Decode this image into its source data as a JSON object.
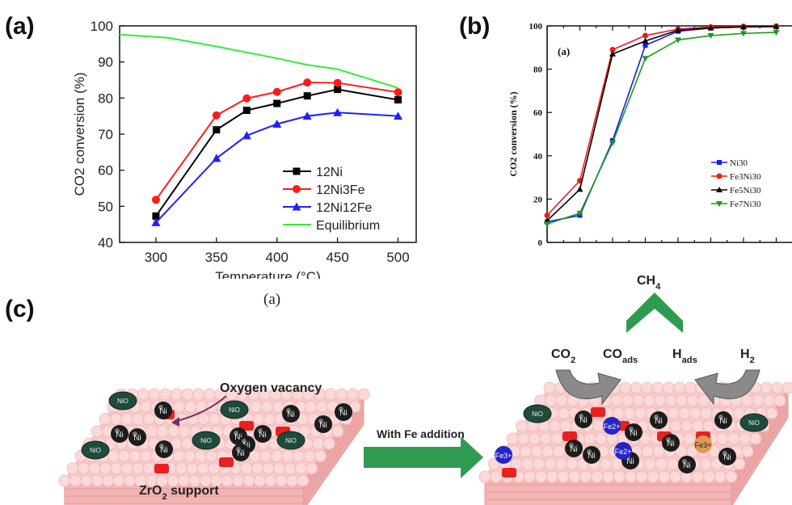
{
  "panels": {
    "a_letter": "(a)",
    "b_letter": "(b)",
    "c_letter": "(c)",
    "a_caption": "(a)"
  },
  "chart_data": [
    {
      "id": "chart-a",
      "type": "line",
      "xlabel": "Temperature (°C)",
      "ylabel": "CO2 conversion (%)",
      "xlim": [
        270,
        515
      ],
      "ylim": [
        40,
        100
      ],
      "xticks": [
        300,
        350,
        400,
        450,
        500
      ],
      "yticks": [
        40,
        50,
        60,
        70,
        80,
        90,
        100
      ],
      "legend_position": "bottom-right",
      "series": [
        {
          "name": "12Ni",
          "color": "#000000",
          "marker": "square",
          "x": [
            300,
            350,
            375,
            400,
            425,
            450,
            500
          ],
          "y": [
            47.3,
            71.2,
            76.6,
            78.5,
            80.6,
            82.4,
            79.5
          ]
        },
        {
          "name": "12Ni3Fe",
          "color": "#ff1a1a",
          "marker": "circle",
          "x": [
            300,
            350,
            375,
            400,
            425,
            450,
            500
          ],
          "y": [
            51.8,
            75.2,
            79.9,
            81.7,
            84.3,
            84.2,
            81.6
          ]
        },
        {
          "name": "12Ni12Fe",
          "color": "#2020ff",
          "marker": "triangle-up",
          "x": [
            300,
            350,
            375,
            400,
            425,
            450,
            500
          ],
          "y": [
            45.5,
            63.3,
            69.6,
            72.8,
            75.0,
            76.0,
            75.0
          ]
        },
        {
          "name": "Equilibrium",
          "color": "#33ee33",
          "marker": "none",
          "x": [
            270,
            310,
            350,
            400,
            425,
            450,
            500
          ],
          "y": [
            97.6,
            96.7,
            94.3,
            91.0,
            89.2,
            88.0,
            82.8
          ]
        }
      ]
    },
    {
      "id": "chart-b",
      "type": "line",
      "inset_label": "(a)",
      "xlabel": "",
      "ylabel": "CO2 conversion (%)",
      "ylim": [
        0,
        100
      ],
      "yticks": [
        0,
        20,
        40,
        60,
        80,
        100
      ],
      "x_index_count": 8,
      "legend_position": "bottom-right",
      "series": [
        {
          "name": "Ni30",
          "color": "#1a1aee",
          "marker": "square",
          "x": [
            0,
            1,
            2,
            3,
            4,
            5,
            6,
            7
          ],
          "y": [
            9.5,
            12.5,
            47,
            91,
            97.5,
            99,
            99.5,
            99.7
          ]
        },
        {
          "name": "Fe3Ni30",
          "color": "#ee1a1a",
          "marker": "circle",
          "x": [
            0,
            1,
            2,
            3,
            4,
            5,
            6,
            7
          ],
          "y": [
            12.5,
            28.5,
            89,
            95.5,
            98.5,
            99.5,
            99.7,
            99.8
          ]
        },
        {
          "name": "Fe5Ni30",
          "color": "#000000",
          "marker": "triangle-up",
          "x": [
            0,
            1,
            2,
            3,
            4,
            5,
            6,
            7
          ],
          "y": [
            10,
            24.5,
            87,
            93,
            98,
            99,
            99.5,
            99.7
          ]
        },
        {
          "name": "Fe7Ni30",
          "color": "#1a9a1a",
          "marker": "triangle-down",
          "x": [
            0,
            1,
            2,
            3,
            4,
            5,
            6,
            7
          ],
          "y": [
            8.5,
            13.5,
            46,
            85,
            93.5,
            95.5,
            96.5,
            97
          ]
        }
      ]
    }
  ],
  "diagram": {
    "oxygen_vacancy": "Oxygen vacancy",
    "support": "ZrO2 support",
    "arrow_label": "With  Fe  addition",
    "ch4": "CH4",
    "co2": "CO2",
    "coads": "COads",
    "hads": "Hads",
    "h2": "H2",
    "nio": "NiO",
    "ni": "Ni",
    "fe2": "Fe2+",
    "fe3": "Fe3+",
    "colors": {
      "support_pink": "#f7c9c9",
      "nio_green": "#1f4a3c",
      "ni_black": "#1c1c1c",
      "fe2_blue": "#2424c8",
      "fe3_orange": "#e09a55",
      "arrow_green": "#2e9a52",
      "vacancy_red": "#e82020"
    }
  }
}
